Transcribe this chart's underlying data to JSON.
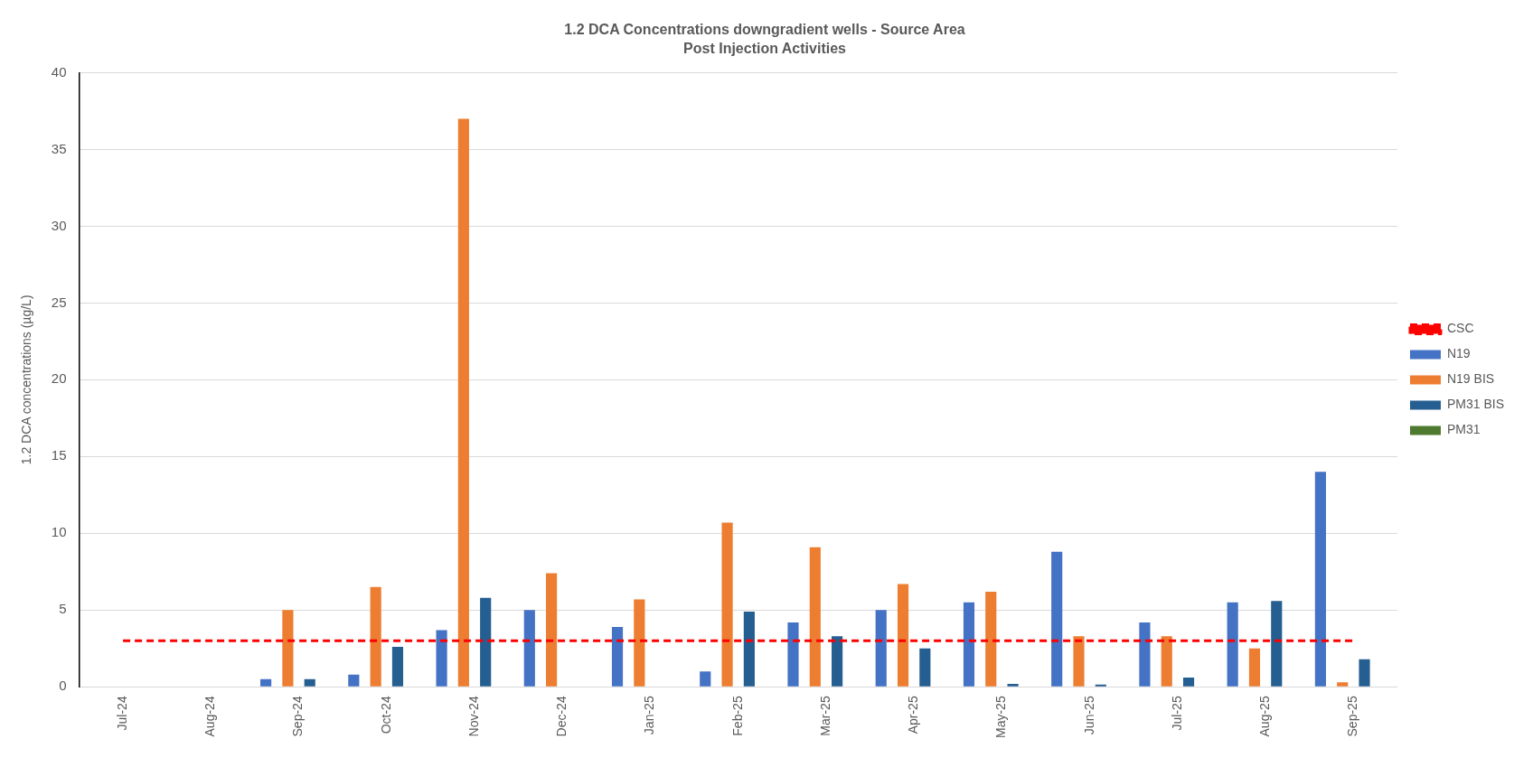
{
  "chart_data": {
    "type": "bar",
    "title": "1.2 DCA Concentrations downgradient wells - Source Area",
    "subtitle": "Post Injection Activities",
    "ylabel": "1.2 DCA concentrations (µg/L)",
    "categories": [
      "Jul-24",
      "Aug-24",
      "Sep-24",
      "Oct-24",
      "Nov-24",
      "Dec-24",
      "Jan-25",
      "Feb-25",
      "Mar-25",
      "Apr-25",
      "May-25",
      "Jun-25",
      "Jul-25",
      "Aug-25",
      "Sep-25"
    ],
    "series": [
      {
        "name": "N19",
        "color": "#4472c4",
        "values": [
          null,
          null,
          0.5,
          0.8,
          3.7,
          5.0,
          3.9,
          1.0,
          4.2,
          5.0,
          5.5,
          8.8,
          4.2,
          5.5,
          14.0
        ]
      },
      {
        "name": "N19 BIS",
        "color": "#ed7d31",
        "values": [
          null,
          null,
          5.0,
          6.5,
          37.0,
          7.4,
          5.7,
          10.7,
          9.1,
          6.7,
          6.2,
          3.3,
          3.3,
          2.5,
          0.3
        ]
      },
      {
        "name": "PM31 BIS",
        "color": "#255e91",
        "values": [
          null,
          null,
          0.5,
          2.6,
          5.8,
          null,
          null,
          4.9,
          3.3,
          2.5,
          0.2,
          0.15,
          0.6,
          5.6,
          1.8
        ]
      },
      {
        "name": "PM31",
        "color": "#4e7a2f",
        "values": [
          null,
          null,
          null,
          null,
          null,
          null,
          null,
          null,
          null,
          null,
          null,
          null,
          null,
          null,
          null
        ]
      },
      {
        "name": "CSC",
        "type": "line",
        "color": "#ff0000",
        "line_style": "dashed",
        "marker": "none",
        "values": [
          3,
          3,
          3,
          3,
          3,
          3,
          3,
          3,
          3,
          3,
          3,
          3,
          3,
          3,
          3
        ]
      }
    ],
    "ylim": [
      0,
      40
    ],
    "yticks": [
      0,
      5,
      10,
      15,
      20,
      25,
      30,
      35,
      40
    ],
    "grid": "y",
    "legend": "right"
  }
}
